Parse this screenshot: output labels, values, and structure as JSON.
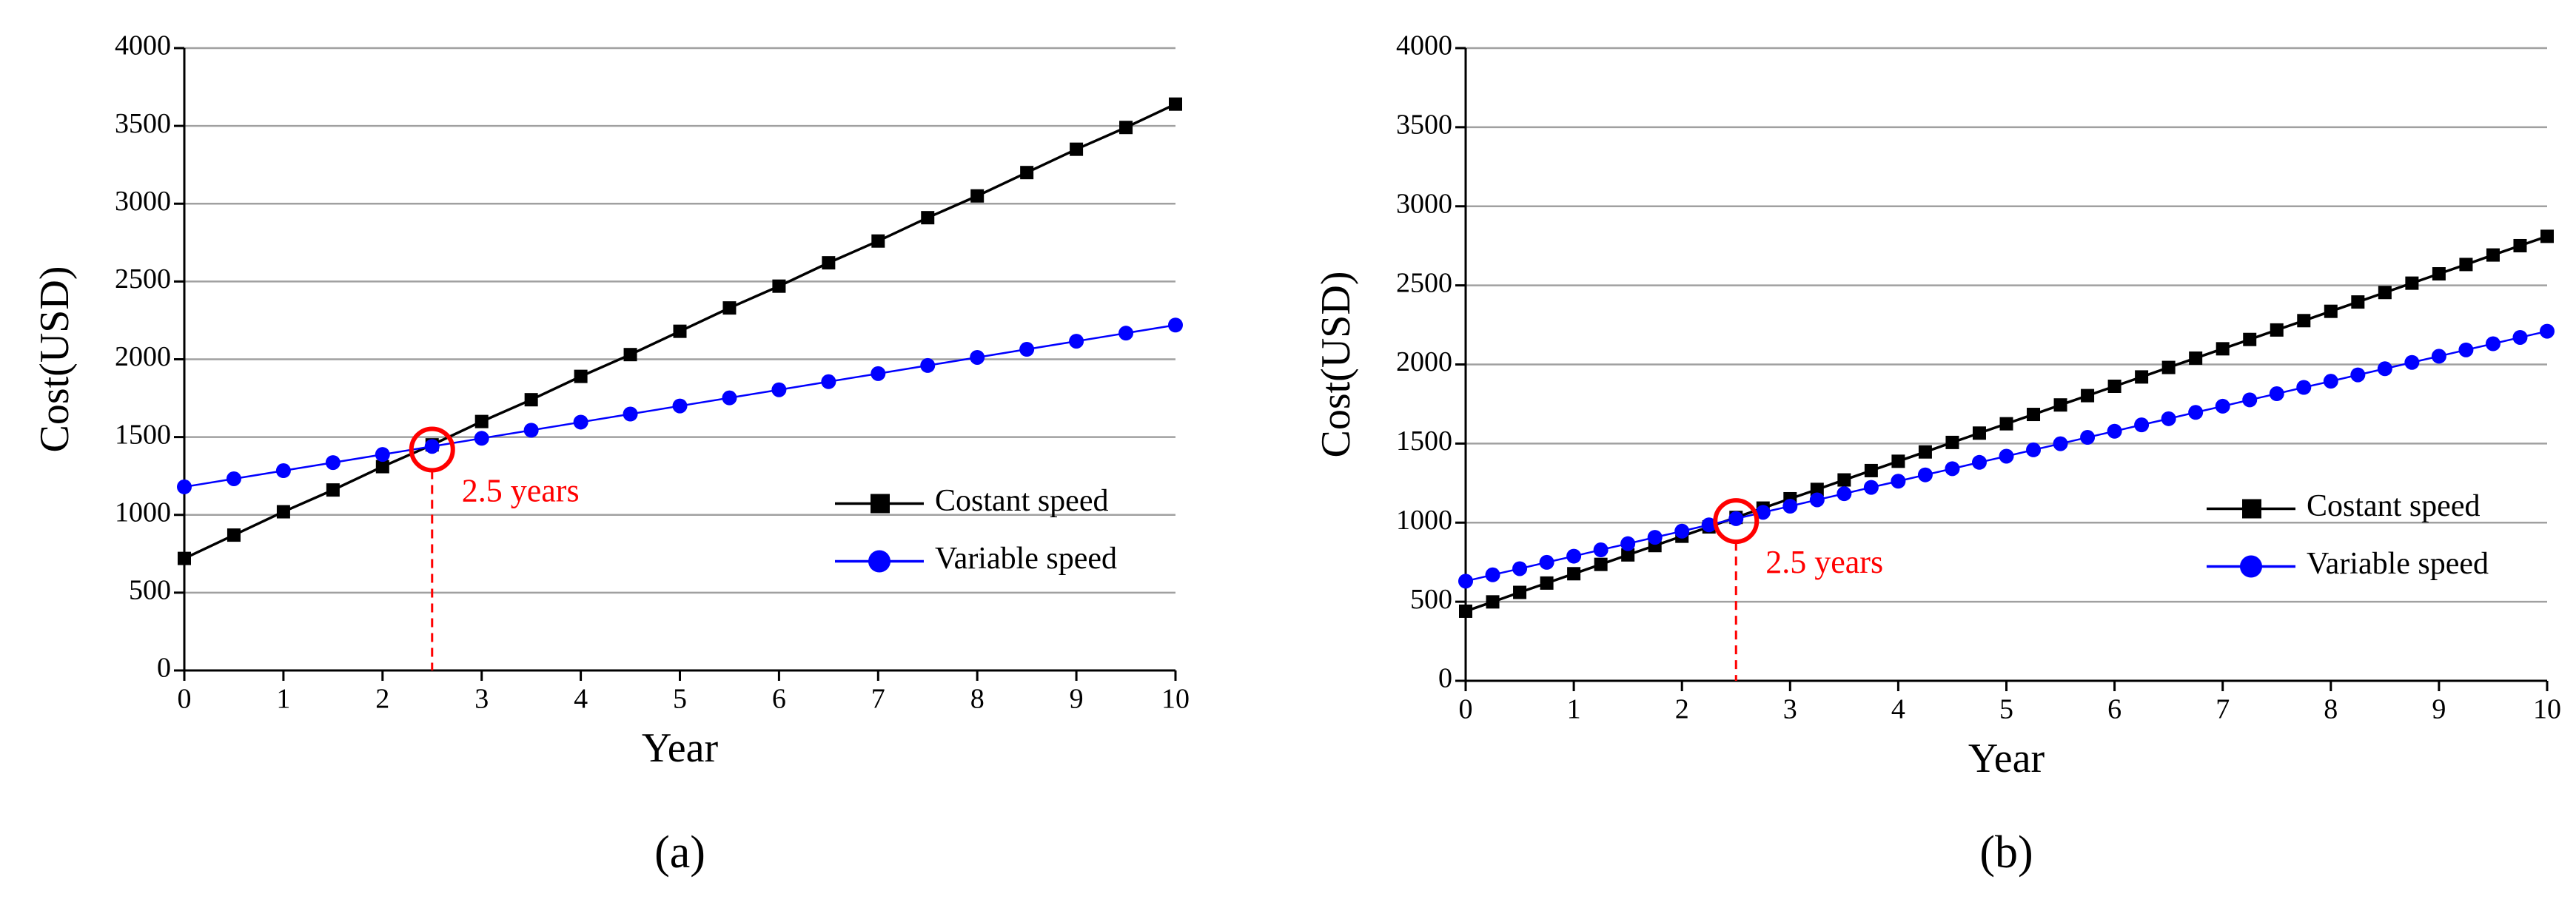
{
  "chart_data": [
    {
      "type": "line",
      "caption": "(a)",
      "xlabel": "Year",
      "ylabel": "Cost(USD)",
      "x": [
        0,
        0.5,
        1,
        1.5,
        2,
        2.5,
        3,
        3.5,
        4,
        4.5,
        5,
        5.5,
        6,
        6.5,
        7,
        7.5,
        8,
        8.5,
        9,
        9.5,
        10
      ],
      "series": [
        {
          "name": "Costant speed",
          "color": "#000000",
          "marker": "square",
          "values": [
            720,
            870,
            1020,
            1160,
            1310,
            1450,
            1600,
            1740,
            1890,
            2030,
            2180,
            2330,
            2470,
            2620,
            2760,
            2910,
            3050,
            3200,
            3350,
            3490,
            3640
          ]
        },
        {
          "name": "Variable speed",
          "color": "#0000ff",
          "marker": "circle",
          "values": [
            1180,
            1232,
            1284,
            1336,
            1388,
            1440,
            1492,
            1544,
            1596,
            1648,
            1700,
            1752,
            1804,
            1856,
            1908,
            1960,
            2012,
            2064,
            2116,
            2168,
            2220
          ]
        }
      ],
      "annotation": {
        "text": "2.5 years",
        "x": 2.5,
        "y": 1420,
        "color": "#ff0000"
      },
      "xlim": [
        0,
        10
      ],
      "xticks": [
        0,
        1,
        2,
        3,
        4,
        5,
        6,
        7,
        8,
        9,
        10
      ],
      "ylim": [
        0,
        4000
      ],
      "yticks": [
        0,
        500,
        1000,
        1500,
        2000,
        2500,
        3000,
        3500,
        4000
      ],
      "grid": true,
      "legend": "right"
    },
    {
      "type": "line",
      "caption": "(b)",
      "xlabel": "Year",
      "ylabel": "Cost(USD)",
      "x": [
        0,
        0.25,
        0.5,
        0.75,
        1,
        1.25,
        1.5,
        1.75,
        2,
        2.25,
        2.5,
        2.75,
        3,
        3.25,
        3.5,
        3.75,
        4,
        4.25,
        4.5,
        4.75,
        5,
        5.25,
        5.5,
        5.75,
        6,
        6.25,
        6.5,
        6.75,
        7,
        7.25,
        7.5,
        7.75,
        8,
        8.25,
        8.5,
        8.75,
        9,
        9.25,
        9.5,
        9.75,
        10
      ],
      "series": [
        {
          "name": "Costant speed",
          "color": "#000000",
          "marker": "square",
          "values": [
            440,
            499,
            559,
            618,
            677,
            736,
            796,
            855,
            914,
            973,
            1033,
            1092,
            1151,
            1210,
            1270,
            1329,
            1388,
            1447,
            1507,
            1566,
            1625,
            1684,
            1744,
            1803,
            1862,
            1921,
            1981,
            2040,
            2099,
            2158,
            2218,
            2277,
            2336,
            2395,
            2455,
            2514,
            2573,
            2632,
            2692,
            2751,
            2810
          ]
        },
        {
          "name": "Variable speed",
          "color": "#0000ff",
          "marker": "circle",
          "values": [
            630,
            670,
            709,
            749,
            788,
            828,
            867,
            907,
            946,
            986,
            1025,
            1065,
            1104,
            1144,
            1183,
            1223,
            1262,
            1302,
            1341,
            1381,
            1420,
            1460,
            1499,
            1539,
            1578,
            1618,
            1657,
            1697,
            1736,
            1776,
            1815,
            1855,
            1894,
            1934,
            1973,
            2013,
            2052,
            2092,
            2131,
            2171,
            2210
          ]
        }
      ],
      "annotation": {
        "text": "2.5 years",
        "x": 2.5,
        "y": 1010,
        "color": "#ff0000"
      },
      "xlim": [
        0,
        10
      ],
      "xticks": [
        0,
        1,
        2,
        3,
        4,
        5,
        6,
        7,
        8,
        9,
        10
      ],
      "ylim": [
        0,
        4000
      ],
      "yticks": [
        0,
        500,
        1000,
        1500,
        2000,
        2500,
        3000,
        3500,
        4000
      ],
      "grid": true,
      "legend": "right"
    }
  ]
}
